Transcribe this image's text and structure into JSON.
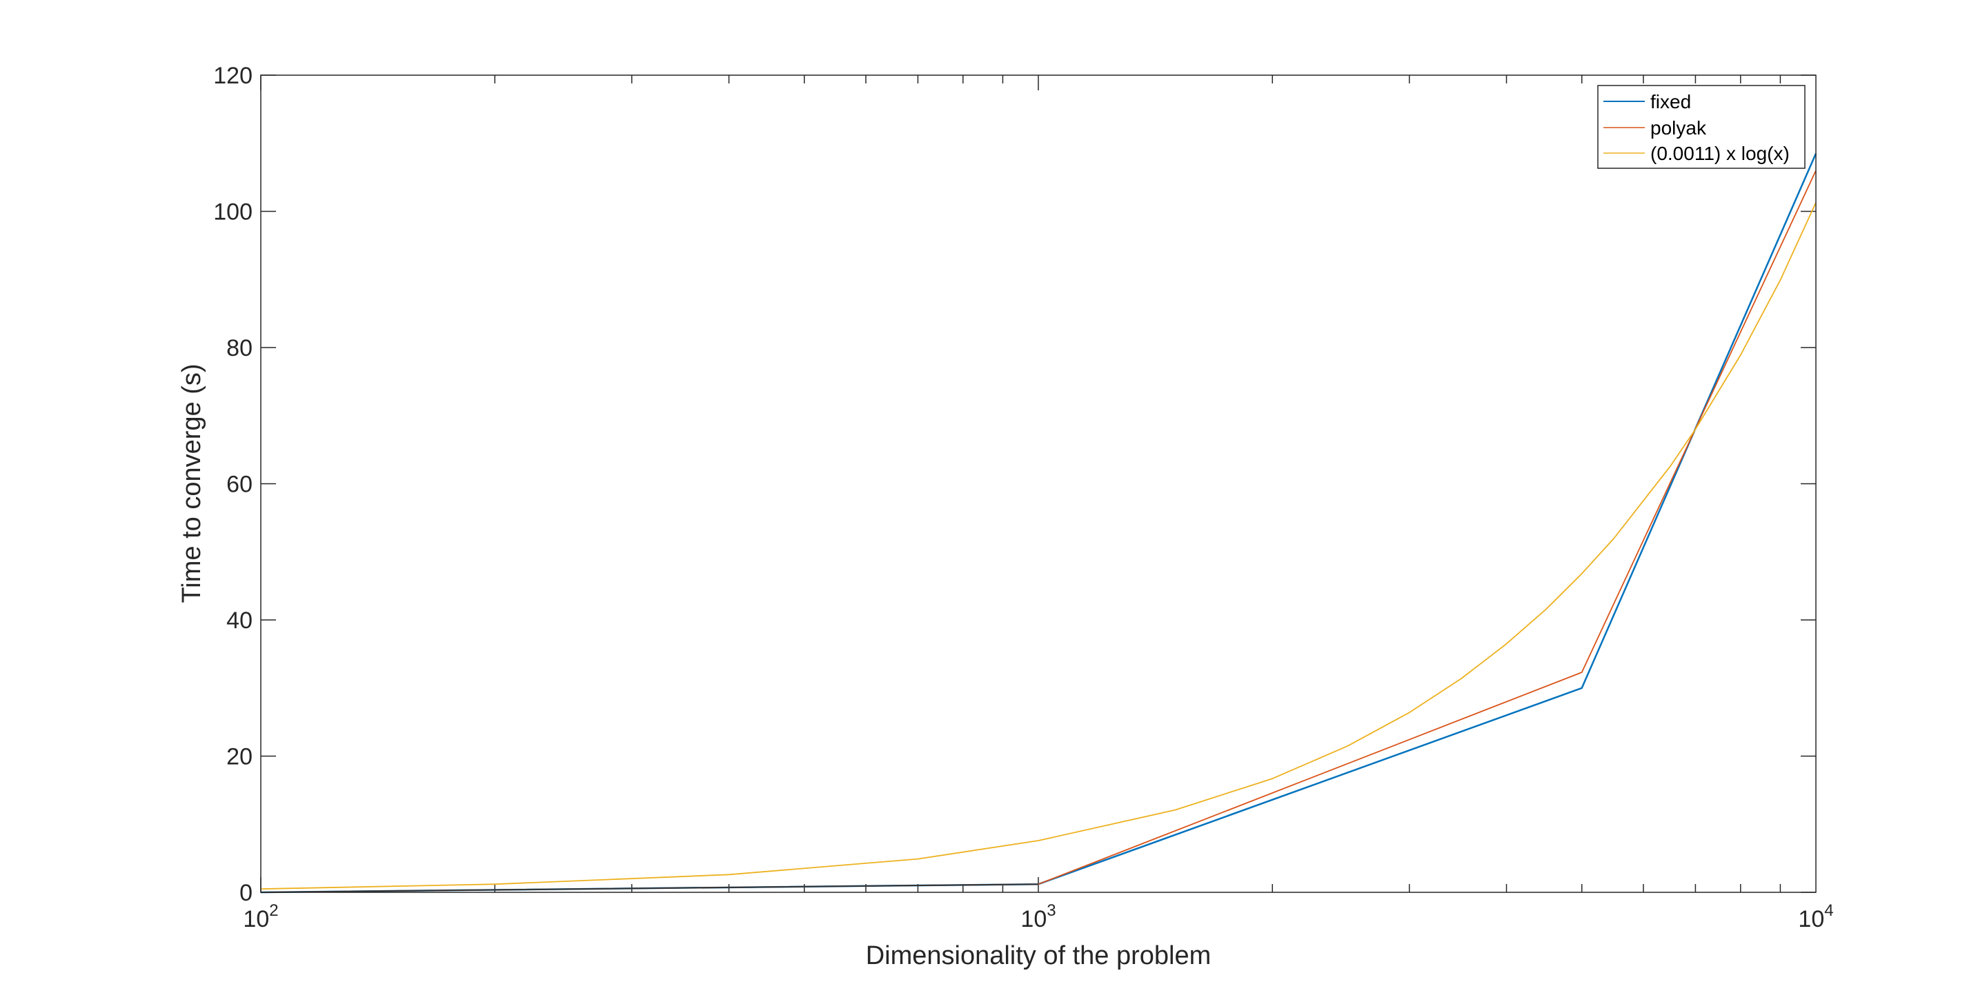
{
  "chart_data": {
    "type": "line",
    "title": "",
    "xlabel": "Dimensionality of the problem",
    "ylabel": "Time to converge (s)",
    "xscale": "log",
    "xlim": [
      100,
      10000
    ],
    "ylim": [
      0,
      120
    ],
    "x_ticks": [
      {
        "value": 100,
        "base": "10",
        "exp": "2"
      },
      {
        "value": 1000,
        "base": "10",
        "exp": "3"
      },
      {
        "value": 10000,
        "base": "10",
        "exp": "4"
      }
    ],
    "y_ticks": [
      0,
      20,
      40,
      60,
      80,
      100,
      120
    ],
    "grid": false,
    "legend_position": "top-right",
    "series": [
      {
        "name": "fixed",
        "color": "#0072BD",
        "x": [
          100,
          1000,
          5000,
          10000
        ],
        "y": [
          0,
          1.2,
          30,
          108.5
        ]
      },
      {
        "name": "polyak",
        "color": "#D95319",
        "x": [
          100,
          1000,
          5000,
          10000
        ],
        "y": [
          0,
          1.2,
          32.3,
          106
        ]
      },
      {
        "name": "(0.0011) x log(x)",
        "color": "#EDB120",
        "x": [
          100,
          200,
          400,
          700,
          1000,
          1500,
          2000,
          2500,
          3000,
          3500,
          4000,
          4500,
          5000,
          5500,
          6500,
          7000,
          8000,
          9000,
          10000
        ],
        "y": [
          0.5,
          1.2,
          2.6,
          4.9,
          7.6,
          12.1,
          16.7,
          21.5,
          26.4,
          31.4,
          36.5,
          41.6,
          46.8,
          52.0,
          62.6,
          68.0,
          78.9,
          89.9,
          101.3
        ]
      }
    ]
  }
}
